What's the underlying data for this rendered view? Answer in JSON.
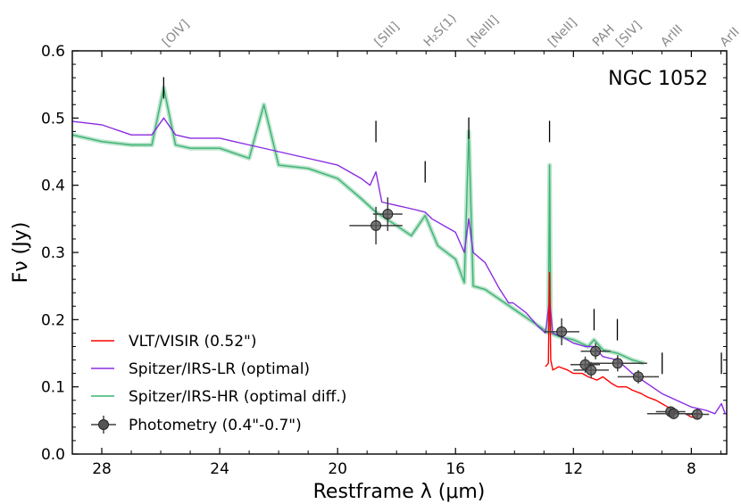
{
  "chart_data": {
    "type": "line",
    "title": "NGC 1052",
    "xlabel": "Restframe λ (μm)",
    "ylabel": "Fν (Jy)",
    "xlim": [
      29.0,
      6.8
    ],
    "ylim": [
      0.0,
      0.6
    ],
    "x_axis_reversed": true,
    "x_ticks": [
      28,
      24,
      20,
      16,
      12,
      8
    ],
    "x_tick_labels": [
      "28",
      "24",
      "20",
      "16",
      "12",
      "8"
    ],
    "y_ticks": [
      0.0,
      0.1,
      0.2,
      0.3,
      0.4,
      0.5,
      0.6
    ],
    "y_tick_labels": [
      "0.0",
      "0.1",
      "0.2",
      "0.3",
      "0.4",
      "0.5",
      "0.6"
    ],
    "line_labels": [
      {
        "label": "[OIV]",
        "x": 25.9,
        "marker_y": 0.545
      },
      {
        "label": "[SIII]",
        "x": 18.7,
        "marker_y": 0.48
      },
      {
        "label": "H₂S(1)",
        "x": 17.03,
        "marker_y": 0.42
      },
      {
        "label": "[NeIII]",
        "x": 15.55,
        "marker_y": 0.485
      },
      {
        "label": "[NeII]",
        "x": 12.81,
        "marker_y": 0.48
      },
      {
        "label": "PAH",
        "x": 11.3,
        "marker_y": 0.2
      },
      {
        "label": "[SIV]",
        "x": 10.51,
        "marker_y": 0.185
      },
      {
        "label": "ArIII",
        "x": 8.99,
        "marker_y": 0.135
      },
      {
        "label": "ArII",
        "x": 6.98,
        "marker_y": 0.135
      }
    ],
    "series": [
      {
        "name": "VLT/VISIR (0.52\")",
        "color": "#ff0000",
        "x": [
          12.95,
          12.85,
          12.81,
          12.77,
          12.7,
          12.5,
          12.2,
          12.0,
          11.7,
          11.5,
          11.2,
          11.0,
          10.7,
          10.5,
          10.2,
          10.0,
          9.7,
          9.5,
          9.2,
          9.0,
          8.8,
          8.6,
          8.4,
          8.2,
          8.0,
          7.8
        ],
        "y": [
          0.13,
          0.135,
          0.27,
          0.14,
          0.125,
          0.13,
          0.125,
          0.12,
          0.12,
          0.115,
          0.11,
          0.115,
          0.105,
          0.1,
          0.1,
          0.095,
          0.09,
          0.085,
          0.08,
          0.075,
          0.07,
          0.065,
          0.06,
          0.06,
          0.055,
          0.055
        ]
      },
      {
        "name": "Spitzer/IRS-LR (optimal)",
        "color": "#8a2be2",
        "x": [
          29.0,
          28.0,
          27.0,
          26.3,
          25.9,
          25.5,
          25.0,
          24.0,
          23.0,
          22.0,
          21.0,
          20.0,
          19.2,
          18.9,
          18.7,
          18.5,
          18.0,
          17.5,
          17.03,
          16.8,
          16.0,
          15.7,
          15.55,
          15.4,
          15.0,
          14.5,
          14.2,
          14.05,
          13.6,
          13.2,
          12.95,
          12.81,
          12.7,
          12.4,
          12.0,
          11.6,
          11.3,
          11.0,
          10.51,
          10.0,
          9.5,
          9.0,
          8.5,
          8.0,
          7.5,
          7.2,
          6.98,
          6.85,
          6.8
        ],
        "y": [
          0.495,
          0.49,
          0.475,
          0.475,
          0.5,
          0.475,
          0.47,
          0.47,
          0.46,
          0.45,
          0.44,
          0.43,
          0.41,
          0.4,
          0.42,
          0.375,
          0.37,
          0.365,
          0.36,
          0.35,
          0.33,
          0.3,
          0.35,
          0.3,
          0.285,
          0.245,
          0.225,
          0.225,
          0.21,
          0.19,
          0.18,
          0.23,
          0.18,
          0.175,
          0.165,
          0.16,
          0.16,
          0.145,
          0.14,
          0.12,
          0.105,
          0.09,
          0.08,
          0.07,
          0.065,
          0.06,
          0.075,
          0.06,
          0.06
        ]
      },
      {
        "name": "Spitzer/IRS-HR (optimal diff.)",
        "color": "#3cb371",
        "x": [
          29.0,
          28.0,
          27.0,
          26.3,
          25.9,
          25.5,
          25.0,
          24.0,
          23.0,
          22.5,
          22.0,
          21.0,
          20.0,
          19.2,
          18.7,
          18.0,
          17.5,
          17.03,
          16.6,
          16.0,
          15.7,
          15.55,
          15.4,
          15.0,
          14.5,
          14.0,
          13.5,
          13.0,
          12.85,
          12.81,
          12.77,
          12.5,
          12.0,
          11.5,
          11.3,
          11.0,
          10.51,
          10.0,
          9.6
        ],
        "y": [
          0.475,
          0.465,
          0.46,
          0.46,
          0.545,
          0.46,
          0.455,
          0.455,
          0.44,
          0.52,
          0.43,
          0.425,
          0.41,
          0.38,
          0.36,
          0.34,
          0.325,
          0.355,
          0.31,
          0.29,
          0.255,
          0.48,
          0.25,
          0.245,
          0.23,
          0.215,
          0.2,
          0.185,
          0.18,
          0.43,
          0.18,
          0.175,
          0.17,
          0.16,
          0.17,
          0.155,
          0.15,
          0.14,
          0.135
        ]
      }
    ],
    "photometry": {
      "name": "Photometry (0.4\"-0.7\")",
      "color": "#404040",
      "points": [
        {
          "x": 18.7,
          "y": 0.34,
          "xerr": 0.9,
          "yerr": 0.028
        },
        {
          "x": 18.3,
          "y": 0.357,
          "xerr": 0.5,
          "yerr": 0.025
        },
        {
          "x": 12.4,
          "y": 0.182,
          "xerr": 0.6,
          "yerr": 0.02
        },
        {
          "x": 11.6,
          "y": 0.133,
          "xerr": 0.5,
          "yerr": 0.012
        },
        {
          "x": 11.25,
          "y": 0.153,
          "xerr": 0.5,
          "yerr": 0.012
        },
        {
          "x": 11.4,
          "y": 0.125,
          "xerr": 0.6,
          "yerr": 0.012
        },
        {
          "x": 10.5,
          "y": 0.135,
          "xerr": 1.0,
          "yerr": 0.012
        },
        {
          "x": 9.8,
          "y": 0.115,
          "xerr": 0.7,
          "yerr": 0.01
        },
        {
          "x": 8.7,
          "y": 0.063,
          "xerr": 0.5,
          "yerr": 0.008
        },
        {
          "x": 8.6,
          "y": 0.06,
          "xerr": 0.9,
          "yerr": 0.008
        },
        {
          "x": 7.8,
          "y": 0.059,
          "xerr": 0.4,
          "yerr": 0.008
        }
      ]
    },
    "legend": {
      "placement": "lower-left",
      "entries": [
        "VLT/VISIR (0.52\")",
        "Spitzer/IRS-LR (optimal)",
        "Spitzer/IRS-HR (optimal diff.)",
        "Photometry (0.4\"-0.7\")"
      ]
    }
  }
}
